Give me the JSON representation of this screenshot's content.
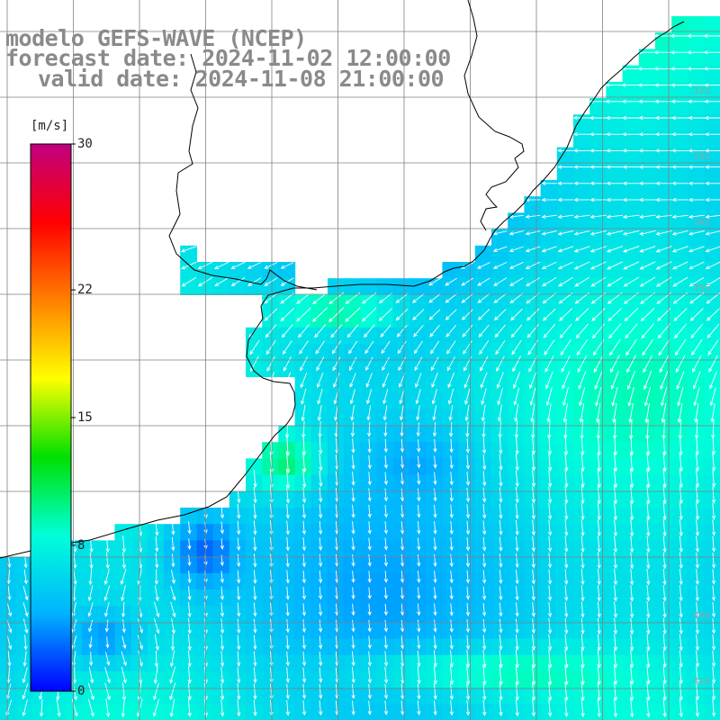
{
  "title": {
    "model": "modelo GEFS-WAVE (NCEP)",
    "forecast": "forecast date: 2024-11-02 12:00:00",
    "valid": "valid date: 2024-11-08 21:00:00"
  },
  "colorbar": {
    "unit": "[m/s]",
    "min": 0,
    "max": 30,
    "tick_labels": [
      "30",
      "22",
      "15",
      "8",
      "0"
    ],
    "tick_values": [
      30,
      22,
      15,
      8,
      0
    ],
    "stops": [
      "#0000ff",
      "#00b4ff",
      "#00ffd8",
      "#00e000",
      "#ffff00",
      "#ff8000",
      "#ff0000",
      "#c00080"
    ]
  },
  "map": {
    "variable": "wind speed and direction",
    "lat_labels": [
      "32S",
      "33S",
      "34S",
      "35S",
      "40S",
      "41S"
    ],
    "land_color": "#ffffff",
    "grid_color": "#808080",
    "coast_color": "#000000"
  }
}
